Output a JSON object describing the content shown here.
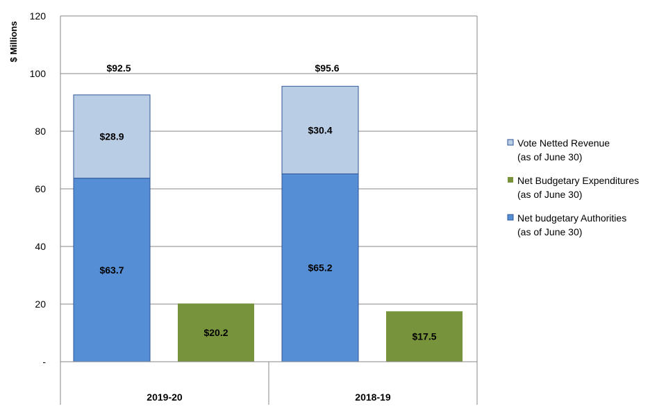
{
  "chart_data": {
    "type": "bar",
    "ylabel": "$ Millions",
    "ylim": [
      0,
      120
    ],
    "yticks": [
      {
        "value": 0,
        "label": "-"
      },
      {
        "value": 20,
        "label": "20"
      },
      {
        "value": 40,
        "label": "40"
      },
      {
        "value": 60,
        "label": "60"
      },
      {
        "value": 80,
        "label": "80"
      },
      {
        "value": 100,
        "label": "100"
      },
      {
        "value": 120,
        "label": "120"
      }
    ],
    "grid": true,
    "legend_position": "right",
    "categories": [
      "2019-20",
      "2018-19"
    ],
    "series": [
      {
        "name": "Net budgetary Authorities",
        "legend_sub": "(as of June 30)",
        "stack": "authorities",
        "color": "#558ED5",
        "values": [
          63.7,
          65.2
        ],
        "labels": [
          "$63.7",
          "$65.2"
        ]
      },
      {
        "name": "Vote Netted Revenue",
        "legend_sub": "(as of June 30)",
        "stack": "authorities",
        "color": "#B9CDE5",
        "values": [
          28.9,
          30.4
        ],
        "labels": [
          "$28.9",
          "$30.4"
        ]
      },
      {
        "name": "Net Budgetary Expenditures",
        "legend_sub": "(as of June 30)",
        "stack": "expenditures",
        "color": "#77933C",
        "values": [
          20.2,
          17.5
        ],
        "labels": [
          "$20.2",
          "$17.5"
        ]
      }
    ],
    "totals": [
      {
        "value": 92.5,
        "label": "$92.5"
      },
      {
        "value": 95.6,
        "label": "$95.6"
      }
    ],
    "legend_order": [
      "Vote Netted Revenue",
      "Net Budgetary Expenditures",
      "Net budgetary Authorities"
    ]
  }
}
